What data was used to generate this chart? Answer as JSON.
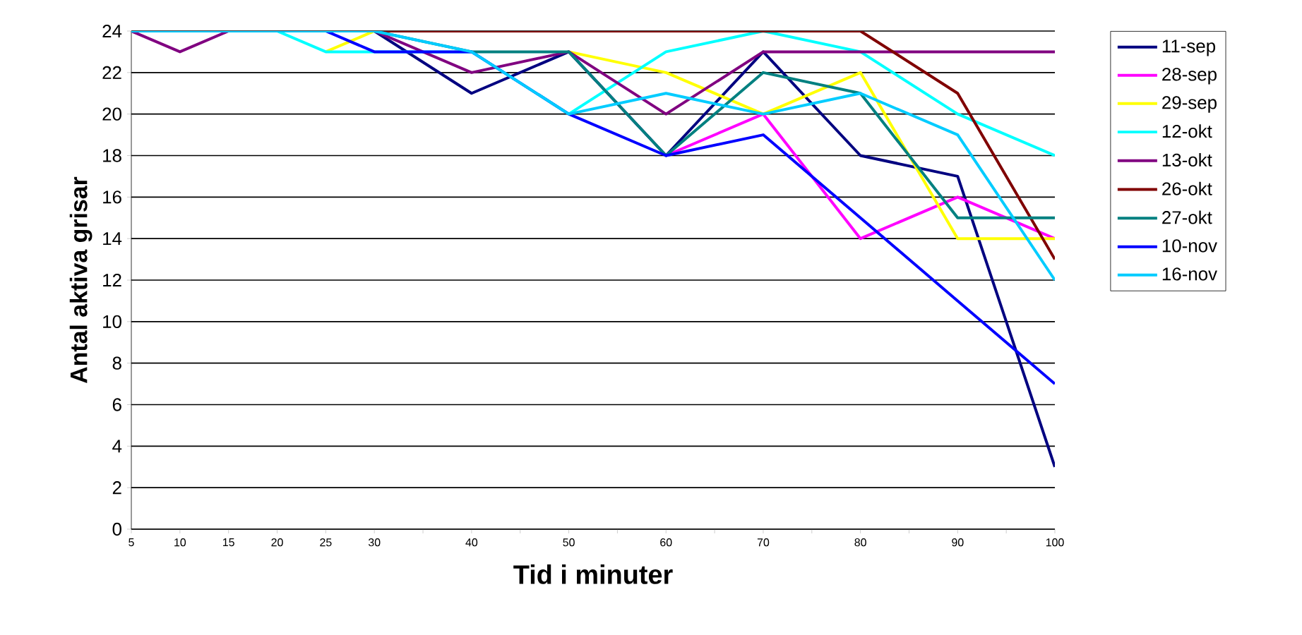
{
  "chart_data": {
    "type": "line",
    "xlabel": "Tid i minuter",
    "ylabel": "Antal aktiva grisar",
    "x": [
      5,
      10,
      15,
      20,
      25,
      30,
      40,
      50,
      60,
      70,
      80,
      90,
      100
    ],
    "xlim": [
      5,
      100
    ],
    "xticks": [
      5,
      10,
      15,
      20,
      25,
      30,
      {
        "value": 35,
        "label": null
      },
      40,
      {
        "value": 45,
        "label": null
      },
      50,
      {
        "value": 55,
        "label": null
      },
      60,
      {
        "value": 65,
        "label": null
      },
      70,
      {
        "value": 75,
        "label": null
      },
      80,
      {
        "value": 85,
        "label": null
      },
      90,
      {
        "value": 95,
        "label": null
      },
      100
    ],
    "ylim": [
      0,
      24
    ],
    "yticks": [
      0,
      2,
      4,
      6,
      8,
      10,
      12,
      14,
      16,
      18,
      20,
      22,
      24
    ],
    "grid": "y",
    "legend": "right",
    "marker": "none",
    "line_style": "solid",
    "series": [
      {
        "name": "11-sep",
        "color": "#000080",
        "values": [
          null,
          null,
          null,
          null,
          null,
          24,
          21,
          23,
          18,
          23,
          18,
          17,
          3
        ]
      },
      {
        "name": "28-sep",
        "color": "#ff00ff",
        "values": [
          null,
          null,
          null,
          null,
          null,
          null,
          null,
          null,
          18,
          20,
          14,
          16,
          14
        ]
      },
      {
        "name": "29-sep",
        "color": "#ffff00",
        "values": [
          null,
          null,
          null,
          null,
          23,
          24,
          null,
          23,
          22,
          20,
          22,
          14,
          14
        ]
      },
      {
        "name": "12-okt",
        "color": "#00ffff",
        "values": [
          null,
          null,
          null,
          24,
          23,
          23,
          23,
          20,
          23,
          24,
          23,
          20,
          18
        ]
      },
      {
        "name": "13-okt",
        "color": "#800080",
        "values": [
          24,
          23,
          24,
          null,
          null,
          24,
          22,
          23,
          20,
          23,
          23,
          23,
          23
        ]
      },
      {
        "name": "26-okt",
        "color": "#800000",
        "values": [
          null,
          null,
          null,
          null,
          null,
          24,
          24,
          24,
          24,
          24,
          24,
          21,
          13
        ]
      },
      {
        "name": "27-okt",
        "color": "#008080",
        "values": [
          null,
          null,
          null,
          null,
          null,
          24,
          23,
          23,
          18,
          22,
          21,
          15,
          15
        ]
      },
      {
        "name": "10-nov",
        "color": "#0000ff",
        "values": [
          null,
          null,
          null,
          null,
          24,
          23,
          23,
          20,
          18,
          19,
          15,
          11,
          7
        ]
      },
      {
        "name": "16-nov",
        "color": "#00ccff",
        "values": [
          24,
          24,
          24,
          24,
          24,
          24,
          23,
          20,
          21,
          20,
          21,
          19,
          12
        ]
      }
    ]
  }
}
